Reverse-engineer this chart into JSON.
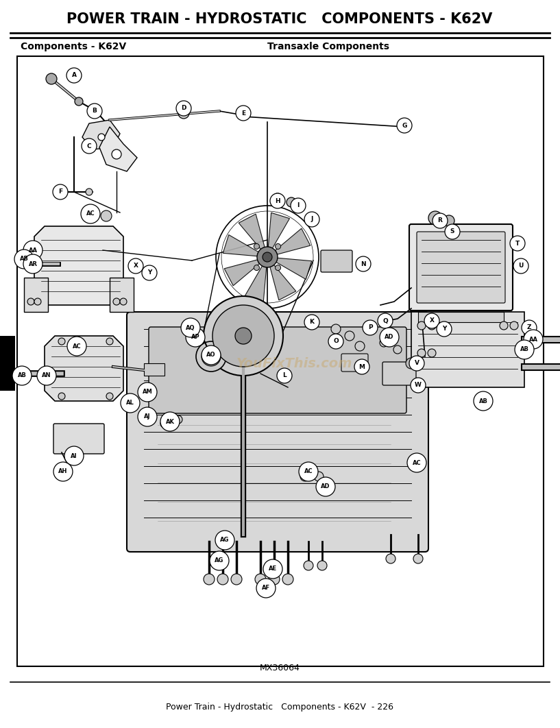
{
  "title": "POWER TRAIN - HYDROSTATIC   COMPONENTS - K62V",
  "subtitle_left": "Components - K62V",
  "subtitle_right": "Transaxle Components",
  "figure_code": "MX36064",
  "footer": "Power Train - Hydrostatic   Components - K62V  - 226",
  "watermark": "YouFixThis.com",
  "bg_color": "#ffffff",
  "title_fontsize": 15,
  "subtitle_fontsize": 10,
  "footer_fontsize": 9,
  "fig_width": 8.17,
  "fig_height": 10.62,
  "dpi": 100
}
